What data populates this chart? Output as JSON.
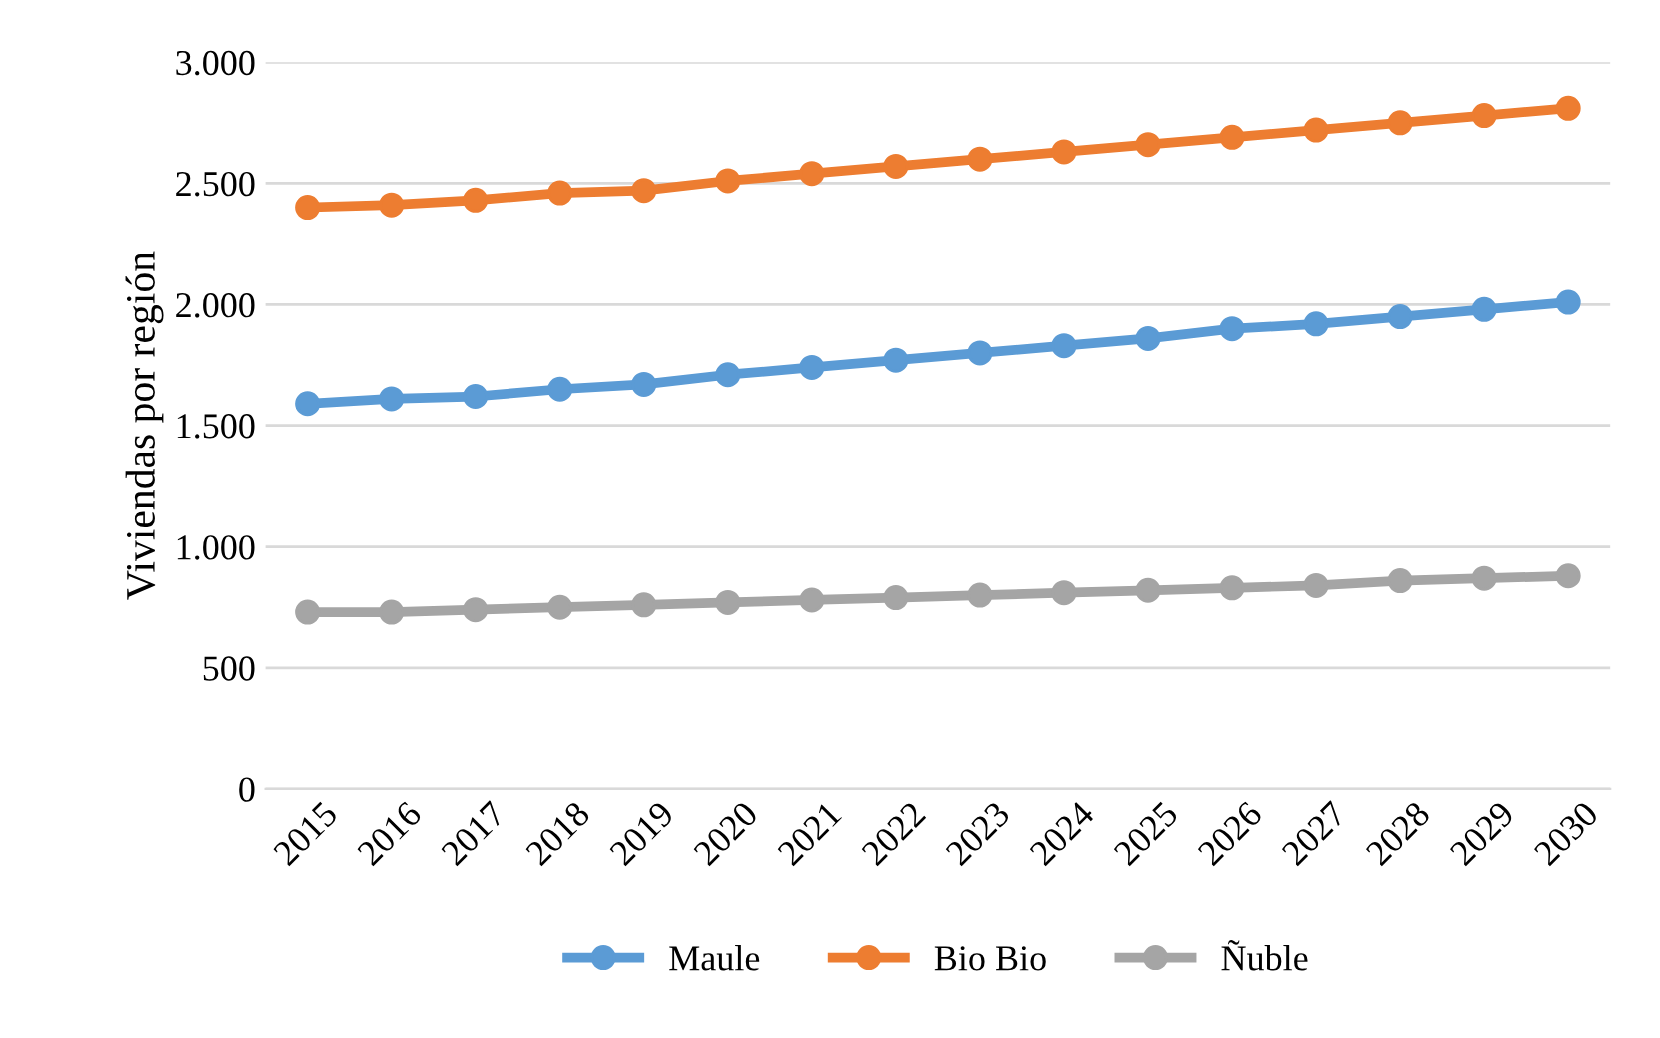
{
  "chart_data": {
    "type": "line",
    "ylabel": "Viviendas por región",
    "categories": [
      "2015",
      "2016",
      "2017",
      "2018",
      "2019",
      "2020",
      "2021",
      "2022",
      "2023",
      "2024",
      "2025",
      "2026",
      "2027",
      "2028",
      "2029",
      "2030"
    ],
    "series": [
      {
        "name": "Maule",
        "color": "#5b9bd5",
        "values": [
          1590,
          1610,
          1620,
          1650,
          1670,
          1710,
          1740,
          1770,
          1800,
          1830,
          1860,
          1900,
          1920,
          1950,
          1980,
          2010
        ]
      },
      {
        "name": "Bio Bio",
        "color": "#ed7d31",
        "values": [
          2400,
          2410,
          2430,
          2460,
          2470,
          2510,
          2540,
          2570,
          2600,
          2630,
          2660,
          2690,
          2720,
          2750,
          2780,
          2810
        ]
      },
      {
        "name": "Ñuble",
        "color": "#a5a5a5",
        "values": [
          730,
          730,
          740,
          750,
          760,
          770,
          780,
          790,
          800,
          810,
          820,
          830,
          840,
          860,
          870,
          880
        ]
      }
    ],
    "ylim": [
      0,
      3000
    ],
    "yticks": [
      {
        "value": 0,
        "label": "0"
      },
      {
        "value": 500,
        "label": "500"
      },
      {
        "value": 1000,
        "label": "1.000"
      },
      {
        "value": 1500,
        "label": "1.500"
      },
      {
        "value": 2000,
        "label": "2.000"
      },
      {
        "value": 2500,
        "label": "2.500"
      },
      {
        "value": 3000,
        "label": "3.000"
      }
    ],
    "grid": "y",
    "legend": "bottom",
    "marker": "circle",
    "line_style": "solid"
  }
}
